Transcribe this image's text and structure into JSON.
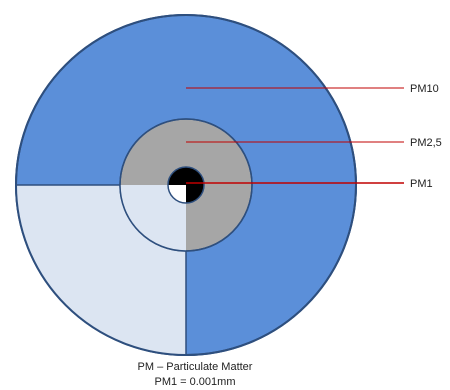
{
  "labels": {
    "pm10": "PM10",
    "pm25": "PM2,5",
    "pm1": "PM1"
  },
  "caption": {
    "line1": "PM – Particulate Matter",
    "line2": "PM1 = 0.001mm"
  },
  "colors": {
    "outer_fill": "#5B8FD9",
    "light_fill": "#DCE5F2",
    "outer_stroke": "#2E4F7E",
    "pm25_fill": "#A6A6A6",
    "pm1_fill": "#000000",
    "leader_line": "#C00000"
  }
}
